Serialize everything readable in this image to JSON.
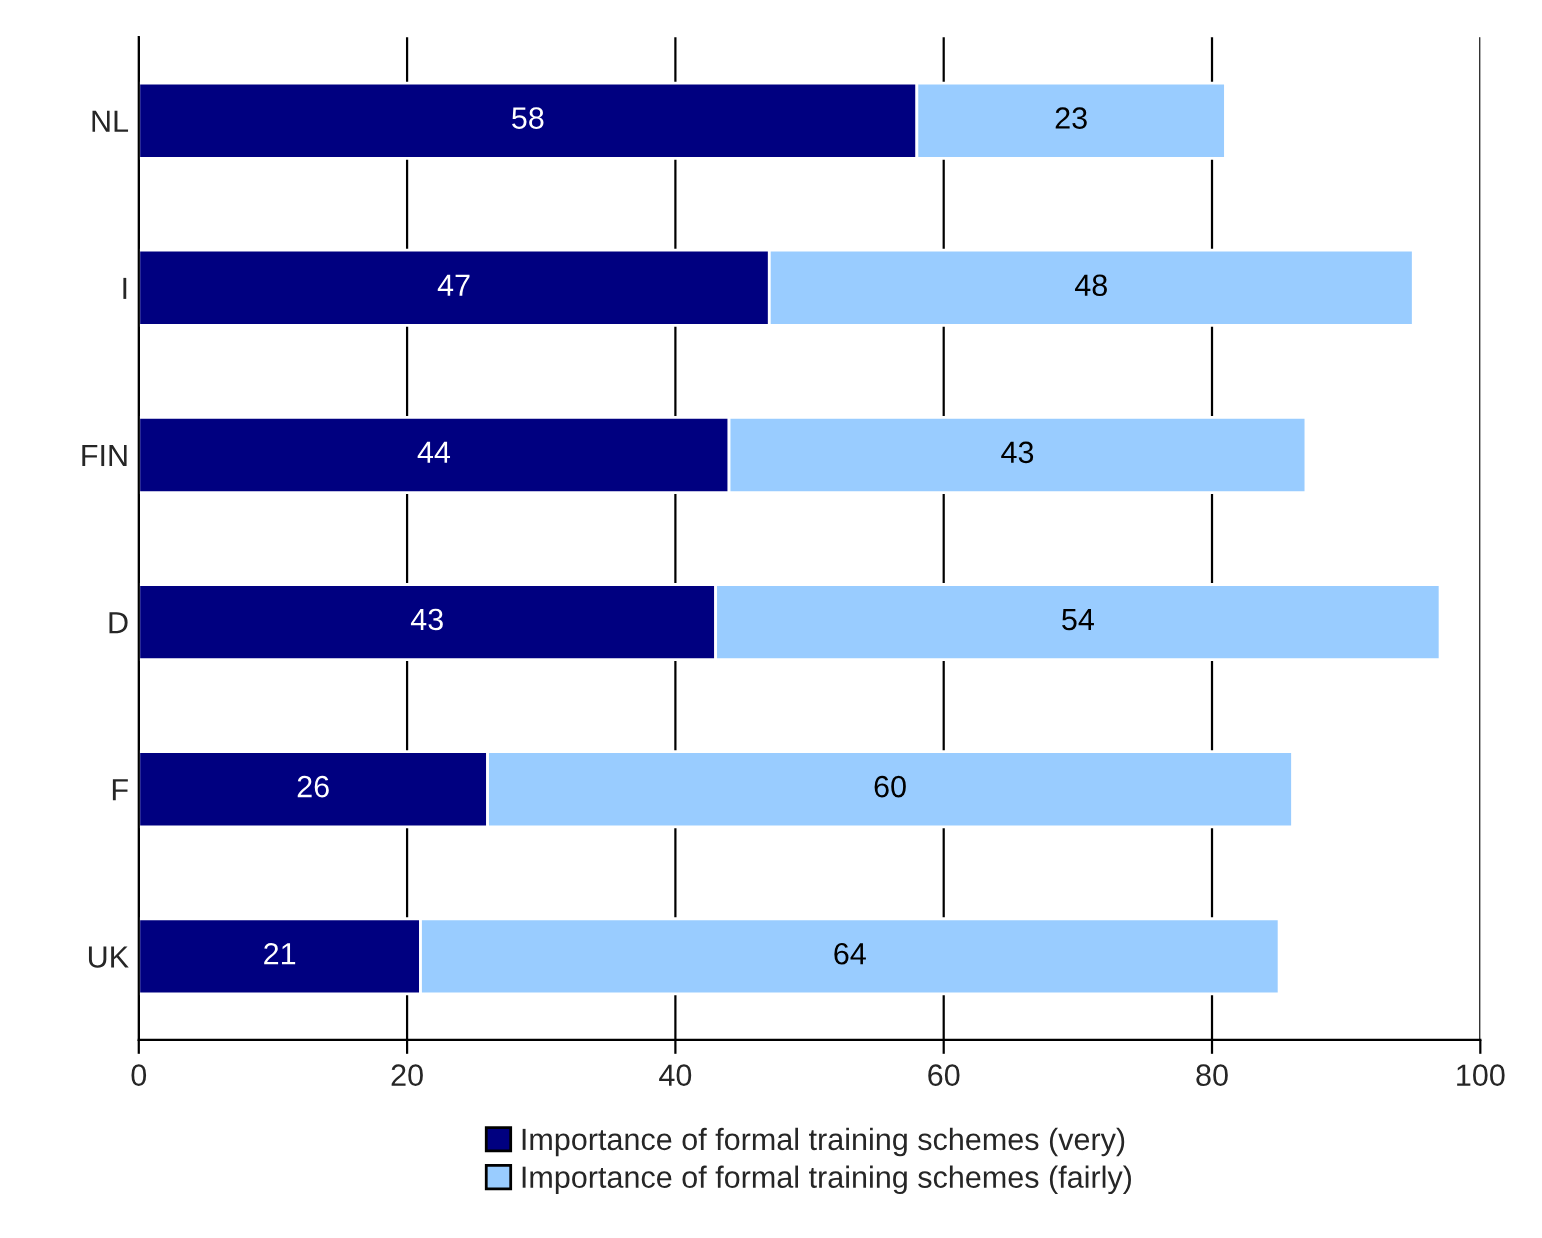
{
  "chart_data": {
    "type": "bar",
    "orientation": "horizontal",
    "stacked": true,
    "categories": [
      "NL",
      "I",
      "FIN",
      "D",
      "F",
      "UK"
    ],
    "series": [
      {
        "name": "Importance of formal training schemes (very)",
        "color": "#000080",
        "values": [
          58,
          47,
          44,
          43,
          26,
          21
        ]
      },
      {
        "name": "Importance of formal training schemes (fairly)",
        "color": "#99ccff",
        "values": [
          23,
          48,
          43,
          54,
          60,
          64
        ]
      }
    ],
    "xlim": [
      0,
      100
    ],
    "xticks": [
      0,
      20,
      40,
      60,
      80,
      100
    ],
    "grid": "x",
    "legend": "bottom",
    "data_labels": true
  }
}
